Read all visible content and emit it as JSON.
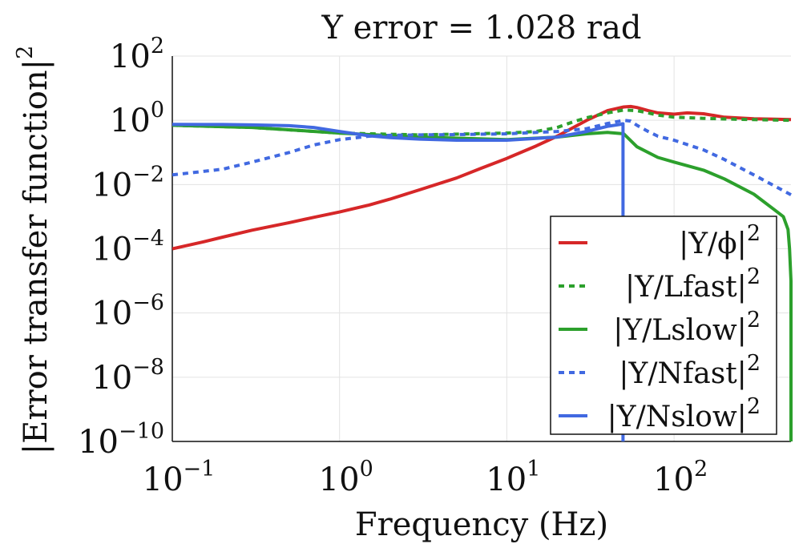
{
  "chart_data": {
    "type": "line",
    "title": "Y error = 1.028 rad",
    "xlabel": "Frequency (Hz)",
    "ylabel_base": "|Error transfer function|",
    "ylabel_exp": "2",
    "xscale": "log",
    "yscale": "log",
    "xlim": [
      0.1,
      500
    ],
    "ylim": [
      1e-10,
      100
    ],
    "x_ticks": [
      {
        "value": 0.1,
        "base": "10",
        "exp": "−1"
      },
      {
        "value": 1,
        "base": "10",
        "exp": "0"
      },
      {
        "value": 10,
        "base": "10",
        "exp": "1"
      },
      {
        "value": 100,
        "base": "10",
        "exp": "2"
      }
    ],
    "y_ticks": [
      {
        "value": 100,
        "base": "10",
        "exp": "2"
      },
      {
        "value": 1,
        "base": "10",
        "exp": "0"
      },
      {
        "value": 0.01,
        "base": "10",
        "exp": "−2"
      },
      {
        "value": 0.0001,
        "base": "10",
        "exp": "−4"
      },
      {
        "value": 1e-06,
        "base": "10",
        "exp": "−6"
      },
      {
        "value": 1e-08,
        "base": "10",
        "exp": "−8"
      },
      {
        "value": 1e-10,
        "base": "10",
        "exp": "−10"
      }
    ],
    "grid": true,
    "legend_position": "bottom-right",
    "series": [
      {
        "name": "|Y/ϕ|",
        "legend_base": "|Y/ϕ|",
        "legend_exp": "2",
        "color": "#d62728",
        "dash": "solid",
        "x": [
          0.1,
          0.15,
          0.2,
          0.3,
          0.5,
          0.7,
          1,
          1.5,
          2,
          3,
          5,
          7,
          10,
          15,
          20,
          25,
          30,
          40,
          50,
          55,
          60,
          70,
          80,
          100,
          120,
          150,
          200,
          300,
          400,
          500
        ],
        "y": [
          0.0001,
          0.00016,
          0.00023,
          0.00038,
          0.00065,
          0.00095,
          0.0014,
          0.0023,
          0.0035,
          0.0068,
          0.016,
          0.032,
          0.065,
          0.16,
          0.32,
          0.6,
          1.0,
          2.0,
          2.6,
          2.7,
          2.5,
          2.0,
          1.7,
          1.55,
          1.7,
          1.6,
          1.25,
          1.12,
          1.08,
          1.05
        ]
      },
      {
        "name": "|Y/Lfast|",
        "legend_base": "|Y/Lfast|",
        "legend_exp": "2",
        "color": "#2ca02c",
        "dash": "dotted",
        "x": [
          0.1,
          0.3,
          1,
          3,
          10,
          15,
          20,
          25,
          30,
          40,
          50,
          60,
          70,
          80,
          100,
          150,
          200,
          300,
          500
        ],
        "y": [
          0.7,
          0.6,
          0.4,
          0.35,
          0.4,
          0.45,
          0.6,
          0.9,
          1.2,
          1.7,
          2.1,
          2.0,
          1.7,
          1.45,
          1.25,
          1.15,
          1.1,
          1.05,
          1.0
        ]
      },
      {
        "name": "|Y/Lslow|",
        "legend_base": "|Y/Lslow|",
        "legend_exp": "2",
        "color": "#2ca02c",
        "dash": "solid",
        "x": [
          0.1,
          0.3,
          1,
          3,
          10,
          20,
          30,
          40,
          50,
          60,
          80,
          100,
          150,
          200,
          300,
          400,
          450,
          480,
          490,
          500,
          500
        ],
        "y": [
          0.7,
          0.6,
          0.4,
          0.3,
          0.25,
          0.3,
          0.38,
          0.42,
          0.38,
          0.15,
          0.07,
          0.05,
          0.028,
          0.015,
          0.005,
          0.0016,
          0.001,
          0.0004,
          0.0001,
          1e-05,
          1e-10
        ]
      },
      {
        "name": "|Y/Nfast|",
        "legend_base": "|Y/Nfast|",
        "legend_exp": "2",
        "color": "#4169e1",
        "dash": "dotted",
        "x": [
          0.1,
          0.2,
          0.3,
          0.5,
          0.7,
          1,
          1.5,
          2,
          3,
          5,
          10,
          20,
          30,
          40,
          50,
          55,
          60,
          70,
          80,
          100,
          150,
          200,
          300,
          500
        ],
        "y": [
          0.02,
          0.03,
          0.05,
          0.1,
          0.17,
          0.25,
          0.32,
          0.34,
          0.35,
          0.36,
          0.38,
          0.45,
          0.55,
          0.8,
          1.0,
          0.95,
          0.7,
          0.45,
          0.32,
          0.24,
          0.12,
          0.06,
          0.02,
          0.0048
        ]
      },
      {
        "name": "|Y/Nslow|",
        "legend_base": "|Y/Nslow|",
        "legend_exp": "2",
        "color": "#4169e1",
        "dash": "solid",
        "x": [
          0.1,
          0.2,
          0.3,
          0.5,
          0.7,
          1,
          1.5,
          2,
          3,
          5,
          10,
          20,
          30,
          40,
          48,
          49,
          49.5,
          49.5
        ],
        "y": [
          0.75,
          0.74,
          0.72,
          0.68,
          0.6,
          0.45,
          0.33,
          0.29,
          0.26,
          0.24,
          0.24,
          0.3,
          0.45,
          0.65,
          0.75,
          0.78,
          0.78,
          1e-10
        ]
      }
    ]
  }
}
